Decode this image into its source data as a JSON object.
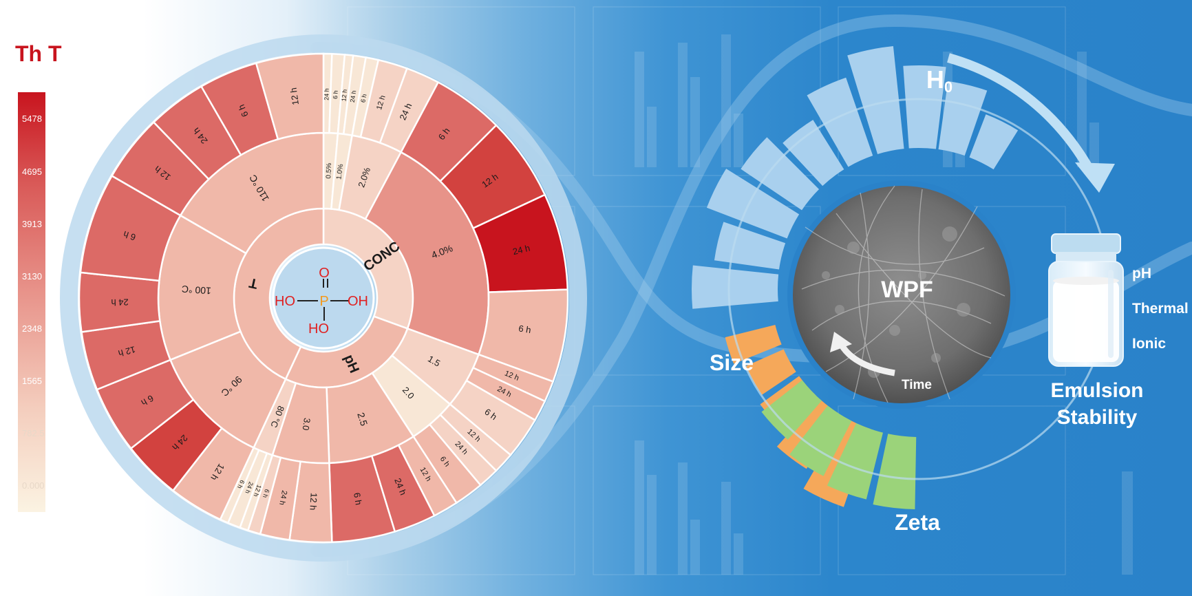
{
  "colorbar": {
    "title": "Th T",
    "ticks": [
      "5478",
      "4695",
      "3913",
      "3130",
      "2348",
      "1565",
      "782.5",
      "0.000"
    ]
  },
  "sunburst": {
    "center_formula": {
      "o": "O",
      "p": "P",
      "oh_left": "HO",
      "oh_right": "OH",
      "oh_bottom": "HO"
    },
    "ring1": [
      "CONC",
      "pH",
      "T"
    ],
    "ring2": [
      "0.5%",
      "1.0%",
      "2.0%",
      "4.0%",
      "1.5",
      "2.0",
      "2.5",
      "3.0",
      "80 °C",
      "90 °C",
      "100 °C",
      "110 °C"
    ],
    "ring3": [
      "24 h",
      "6 h",
      "12 h",
      "24 h",
      "6 h",
      "12 h",
      "24 h",
      "6 h",
      "12 h",
      "24 h",
      "6 h",
      "12 h",
      "24 h",
      "6 h",
      "12 h",
      "24 h",
      "6 h",
      "12 h",
      "24 h",
      "6 h",
      "12 h",
      "24 h",
      "6 h",
      "12 h",
      "24 h",
      "6 h",
      "12 h",
      "24 h",
      "6 h",
      "12 h",
      "24 h",
      "6 h",
      "12 h",
      "24 h",
      "6 h",
      "12 h"
    ]
  },
  "properties": {
    "h0": "H",
    "h0_sub": "0",
    "size": "Size",
    "zeta": "Zeta",
    "wpf": "WPF",
    "time": "Time"
  },
  "stability": {
    "conditions": [
      "pH",
      "Thermal",
      "Ionic"
    ],
    "title_line1": "Emulsion",
    "title_line2": "Stability"
  },
  "colors": {
    "heat_max": "#c8141e",
    "heat_min": "#fbf3e2",
    "formula_red": "#e02020",
    "formula_orange": "#f39a1e",
    "center_fill": "#bcd9ee",
    "h0_bars": "#a9d0ee",
    "size_bars": "#f5a85a",
    "zeta_bars": "#9bd37a"
  }
}
